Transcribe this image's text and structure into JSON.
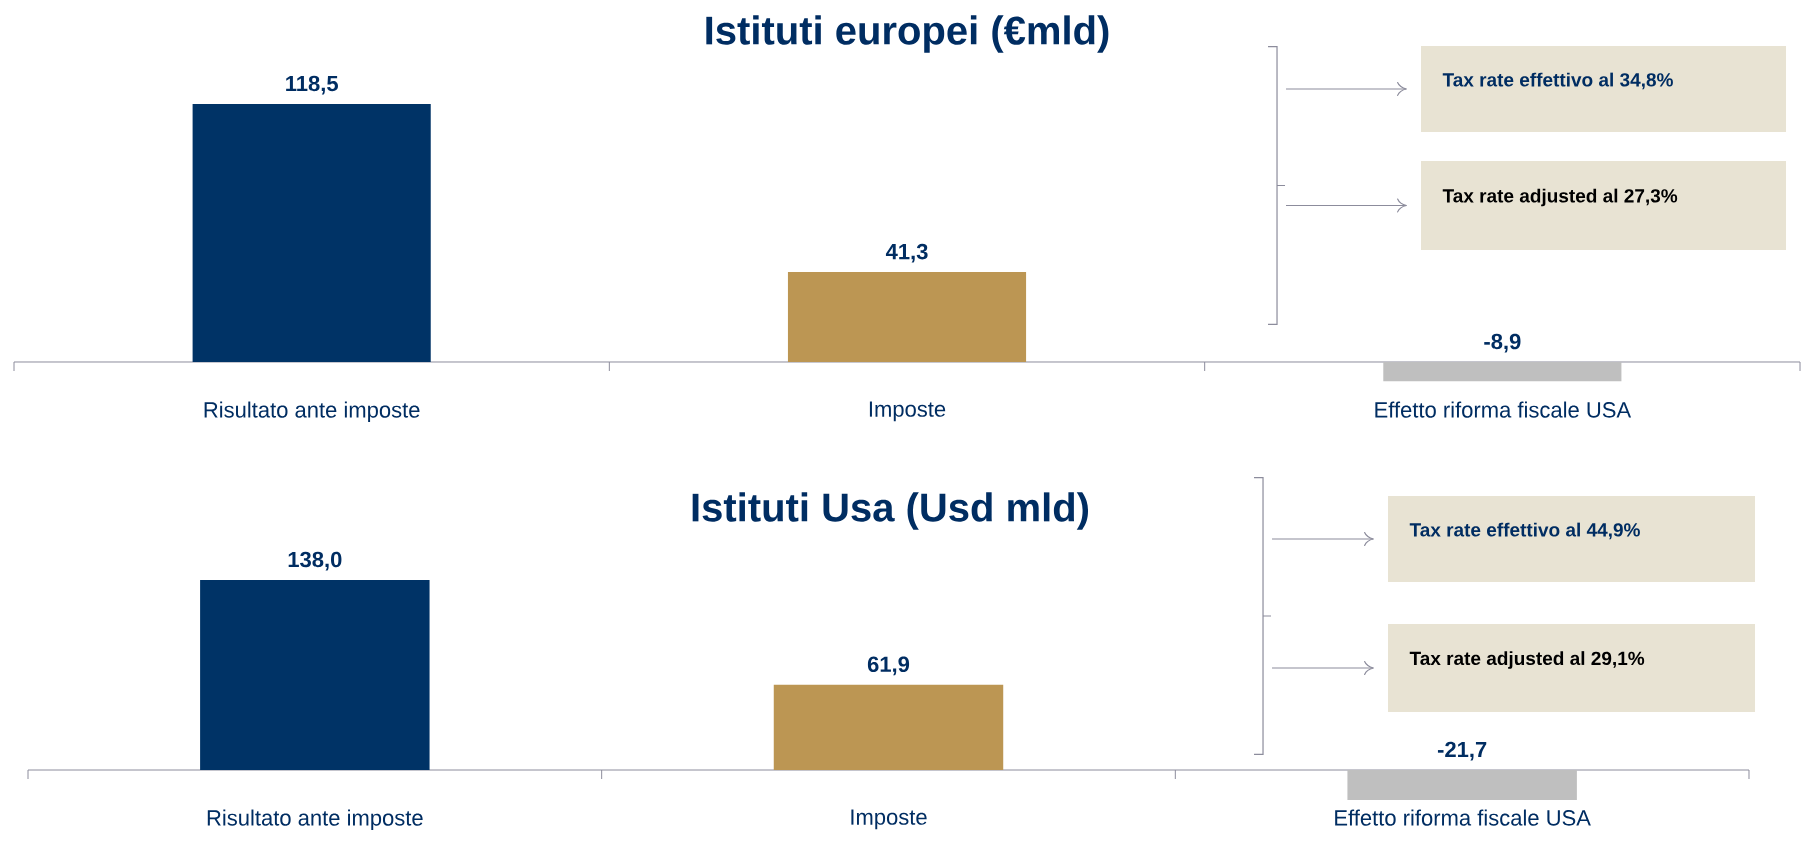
{
  "chart_data": [
    {
      "type": "bar",
      "title": "Istituti europei (€mld)",
      "categories": [
        "Risultato ante imposte",
        "Imposte",
        "Effetto riforma fiscale USA"
      ],
      "values": [
        118.5,
        41.3,
        -8.9
      ],
      "colors": [
        "#003366",
        "#BC9653",
        "#BFBFBF"
      ],
      "value_labels": [
        "118,5",
        "41,3",
        "-8,9"
      ],
      "annotations": [
        "Tax rate effettivo al 34,8%",
        "Tax rate adjusted al 27,3%"
      ]
    },
    {
      "type": "bar",
      "title": "Istituti Usa (Usd mld)",
      "categories": [
        "Risultato ante imposte",
        "Imposte",
        "Effetto riforma fiscale USA"
      ],
      "values": [
        138.0,
        61.9,
        -21.7
      ],
      "colors": [
        "#003366",
        "#BC9653",
        "#BFBFBF"
      ],
      "value_labels": [
        "138,0",
        "61,9",
        "-21,7"
      ],
      "annotations": [
        "Tax rate effettivo al 44,9%",
        "Tax rate adjusted al 29,1%"
      ]
    }
  ]
}
